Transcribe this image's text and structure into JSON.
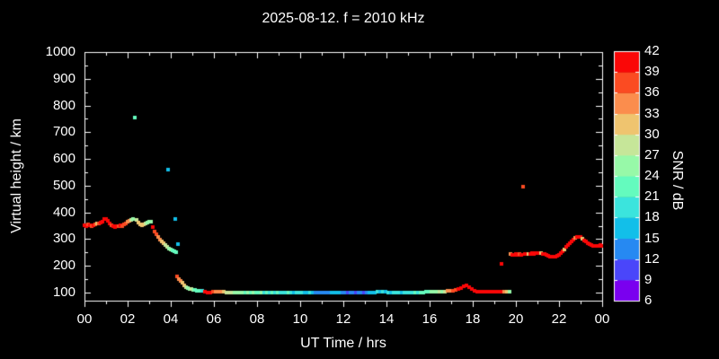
{
  "title": "2025-08-12. f = 2010 kHz",
  "chart_data": {
    "type": "scatter",
    "title": "2025-08-12. f = 2010 kHz",
    "xlabel": "UT Time / hrs",
    "ylabel": "Virtual height / km",
    "xlim": [
      0,
      24
    ],
    "ylim": [
      70,
      1000
    ],
    "grid": "off",
    "background": "#000000",
    "text_color": "#ffffff",
    "x_major_ticks": {
      "hours": [
        0,
        2,
        4,
        6,
        8,
        10,
        12,
        14,
        16,
        18,
        20,
        22,
        24
      ],
      "labels": [
        "00",
        "02",
        "04",
        "06",
        "08",
        "10",
        "12",
        "14",
        "16",
        "18",
        "20",
        "22",
        "00"
      ]
    },
    "x_minor_tick_hours": [
      1,
      3,
      5,
      7,
      9,
      11,
      13,
      15,
      17,
      19,
      21,
      23
    ],
    "y_major_ticks": {
      "values": [
        100,
        200,
        300,
        400,
        500,
        600,
        700,
        800,
        900,
        1000
      ],
      "labels": [
        "100",
        "200",
        "300",
        "400",
        "500",
        "600",
        "700",
        "800",
        "900",
        "1000"
      ]
    },
    "y_minor_tick_values": [
      150,
      250,
      350,
      450,
      550,
      650,
      750,
      850,
      950
    ],
    "colorbar": {
      "label": "SNR / dB",
      "tick_labels_top_to_bottom": [
        "42",
        "39",
        "36",
        "33",
        "30",
        "27",
        "24",
        "21",
        "18",
        "15",
        "12",
        "9",
        "6"
      ],
      "bin_edges": [
        6,
        9,
        12,
        15,
        18,
        21,
        24,
        27,
        30,
        33,
        36,
        39,
        42
      ],
      "colors_low_to_high": [
        "#7A00EF",
        "#4A46FA",
        "#2689F2",
        "#12BFE9",
        "#3BE4DD",
        "#64FBBE",
        "#97F9A8",
        "#C6E699",
        "#EFC46F",
        "#FB8D4D",
        "#FB4B22",
        "#FA0707"
      ]
    },
    "points_format": "[ut_hour, virtual_height_km, snr_db]",
    "points": [
      [
        0.0,
        352,
        39
      ],
      [
        0.08,
        350,
        40
      ],
      [
        0.17,
        355,
        38
      ],
      [
        0.25,
        351,
        40
      ],
      [
        0.33,
        348,
        37
      ],
      [
        0.42,
        352,
        40
      ],
      [
        0.5,
        357,
        36
      ],
      [
        0.58,
        360,
        31
      ],
      [
        0.67,
        358,
        37
      ],
      [
        0.75,
        361,
        40
      ],
      [
        0.83,
        367,
        40
      ],
      [
        0.92,
        374,
        41
      ],
      [
        1.0,
        377,
        40
      ],
      [
        1.08,
        369,
        39
      ],
      [
        1.17,
        360,
        40
      ],
      [
        1.25,
        352,
        38
      ],
      [
        1.33,
        348,
        40
      ],
      [
        1.42,
        345,
        41
      ],
      [
        1.5,
        347,
        39
      ],
      [
        1.58,
        350,
        37
      ],
      [
        1.67,
        352,
        40
      ],
      [
        1.75,
        350,
        38
      ],
      [
        1.83,
        354,
        36
      ],
      [
        1.92,
        359,
        37
      ],
      [
        2.0,
        364,
        34
      ],
      [
        2.08,
        368,
        35
      ],
      [
        2.17,
        371,
        28
      ],
      [
        2.25,
        374,
        26
      ],
      [
        2.33,
        755,
        23
      ],
      [
        2.42,
        371,
        28
      ],
      [
        2.5,
        362,
        31
      ],
      [
        2.58,
        356,
        31
      ],
      [
        2.67,
        352,
        32
      ],
      [
        2.75,
        355,
        30
      ],
      [
        2.83,
        358,
        28
      ],
      [
        2.92,
        362,
        26
      ],
      [
        3.0,
        365,
        25
      ],
      [
        3.08,
        367,
        26
      ],
      [
        3.17,
        345,
        40
      ],
      [
        3.25,
        330,
        37
      ],
      [
        3.33,
        320,
        36
      ],
      [
        3.42,
        310,
        35
      ],
      [
        3.5,
        298,
        33
      ],
      [
        3.58,
        292,
        32
      ],
      [
        3.67,
        285,
        30
      ],
      [
        3.75,
        278,
        28
      ],
      [
        3.83,
        270,
        27
      ],
      [
        3.87,
        560,
        16
      ],
      [
        3.92,
        265,
        25
      ],
      [
        4.0,
        260,
        24
      ],
      [
        4.08,
        257,
        23
      ],
      [
        4.17,
        255,
        23
      ],
      [
        4.2,
        376,
        17
      ],
      [
        4.25,
        252,
        22
      ],
      [
        4.33,
        282,
        16
      ],
      [
        4.3,
        160,
        37
      ],
      [
        4.38,
        152,
        35
      ],
      [
        4.46,
        143,
        34
      ],
      [
        4.54,
        136,
        32
      ],
      [
        4.63,
        128,
        30
      ],
      [
        4.71,
        122,
        28
      ],
      [
        4.79,
        118,
        26
      ],
      [
        4.88,
        115,
        25
      ],
      [
        4.96,
        113,
        27
      ],
      [
        5.04,
        111,
        24
      ],
      [
        5.13,
        109,
        23
      ],
      [
        5.2,
        108,
        21
      ],
      [
        5.33,
        107,
        23
      ],
      [
        5.45,
        106,
        20
      ],
      [
        5.58,
        102,
        39
      ],
      [
        5.7,
        101,
        41
      ],
      [
        5.83,
        101,
        40
      ],
      [
        5.95,
        102,
        38
      ],
      [
        6.08,
        102,
        35
      ],
      [
        6.2,
        102,
        34
      ],
      [
        6.33,
        102,
        33
      ],
      [
        6.45,
        102,
        32
      ],
      [
        6.58,
        101,
        29
      ],
      [
        6.7,
        101,
        28
      ],
      [
        6.83,
        101,
        27
      ],
      [
        6.95,
        100,
        26
      ],
      [
        7.08,
        100,
        25
      ],
      [
        7.2,
        100,
        24
      ],
      [
        7.33,
        100,
        26
      ],
      [
        7.45,
        100,
        23
      ],
      [
        7.58,
        100,
        25
      ],
      [
        7.7,
        100,
        22
      ],
      [
        7.83,
        100,
        24
      ],
      [
        7.95,
        100,
        23
      ],
      [
        8.08,
        100,
        21
      ],
      [
        8.2,
        100,
        24
      ],
      [
        8.33,
        100,
        20
      ],
      [
        8.45,
        100,
        22
      ],
      [
        8.58,
        100,
        19
      ],
      [
        8.7,
        100,
        23
      ],
      [
        8.83,
        100,
        20
      ],
      [
        8.95,
        100,
        21
      ],
      [
        9.08,
        100,
        19
      ],
      [
        9.2,
        100,
        20
      ],
      [
        9.33,
        100,
        18
      ],
      [
        9.45,
        100,
        21
      ],
      [
        9.58,
        100,
        19
      ],
      [
        9.7,
        100,
        17
      ],
      [
        9.83,
        100,
        20
      ],
      [
        9.95,
        100,
        18
      ],
      [
        10.08,
        100,
        19
      ],
      [
        10.2,
        100,
        17
      ],
      [
        10.33,
        100,
        16
      ],
      [
        10.45,
        100,
        18
      ],
      [
        10.58,
        100,
        15
      ],
      [
        10.7,
        100,
        13
      ],
      [
        10.83,
        100,
        14
      ],
      [
        10.95,
        100,
        12
      ],
      [
        11.08,
        100,
        13
      ],
      [
        11.2,
        100,
        14
      ],
      [
        11.33,
        100,
        12
      ],
      [
        11.45,
        100,
        15
      ],
      [
        11.58,
        100,
        16
      ],
      [
        11.7,
        100,
        17
      ],
      [
        11.83,
        100,
        16
      ],
      [
        11.95,
        100,
        14
      ],
      [
        12.08,
        100,
        13
      ],
      [
        12.2,
        100,
        11
      ],
      [
        12.33,
        100,
        12
      ],
      [
        12.45,
        100,
        13
      ],
      [
        12.58,
        100,
        10
      ],
      [
        12.7,
        100,
        12
      ],
      [
        12.83,
        100,
        13
      ],
      [
        12.95,
        100,
        11
      ],
      [
        13.08,
        100,
        14
      ],
      [
        13.2,
        100,
        15
      ],
      [
        13.33,
        100,
        16
      ],
      [
        13.45,
        101,
        17
      ],
      [
        13.58,
        102,
        18
      ],
      [
        13.7,
        102,
        17
      ],
      [
        13.83,
        104,
        19
      ],
      [
        13.95,
        103,
        16
      ],
      [
        14.08,
        101,
        18
      ],
      [
        14.2,
        101,
        17
      ],
      [
        14.33,
        100,
        19
      ],
      [
        14.45,
        100,
        18
      ],
      [
        14.58,
        100,
        20
      ],
      [
        14.7,
        100,
        17
      ],
      [
        14.83,
        100,
        19
      ],
      [
        14.95,
        100,
        18
      ],
      [
        15.08,
        100,
        20
      ],
      [
        15.2,
        100,
        19
      ],
      [
        15.33,
        101,
        21
      ],
      [
        15.45,
        101,
        20
      ],
      [
        15.58,
        101,
        22
      ],
      [
        15.7,
        101,
        21
      ],
      [
        15.83,
        102,
        23
      ],
      [
        15.95,
        102,
        22
      ],
      [
        16.08,
        102,
        24
      ],
      [
        16.2,
        103,
        25
      ],
      [
        16.33,
        103,
        26
      ],
      [
        16.45,
        104,
        27
      ],
      [
        16.58,
        104,
        26
      ],
      [
        16.7,
        105,
        28
      ],
      [
        16.83,
        106,
        33
      ],
      [
        16.95,
        107,
        35
      ],
      [
        17.08,
        108,
        36
      ],
      [
        17.2,
        110,
        38
      ],
      [
        17.33,
        113,
        40
      ],
      [
        17.45,
        117,
        41
      ],
      [
        17.58,
        124,
        42
      ],
      [
        17.7,
        128,
        41
      ],
      [
        17.83,
        122,
        40
      ],
      [
        17.95,
        113,
        39
      ],
      [
        18.08,
        107,
        41
      ],
      [
        18.2,
        105,
        40
      ],
      [
        18.33,
        104,
        39
      ],
      [
        18.45,
        104,
        41
      ],
      [
        18.58,
        103,
        40
      ],
      [
        18.7,
        103,
        42
      ],
      [
        18.83,
        103,
        40
      ],
      [
        18.95,
        104,
        41
      ],
      [
        19.08,
        104,
        40
      ],
      [
        19.2,
        103,
        39
      ],
      [
        19.33,
        103,
        40
      ],
      [
        19.45,
        104,
        35
      ],
      [
        19.58,
        103,
        31
      ],
      [
        19.7,
        104,
        24
      ],
      [
        19.33,
        207,
        40
      ],
      [
        19.75,
        244,
        33
      ],
      [
        19.83,
        242,
        40
      ],
      [
        19.92,
        240,
        39
      ],
      [
        20.0,
        243,
        41
      ],
      [
        20.08,
        241,
        40
      ],
      [
        20.17,
        244,
        38
      ],
      [
        20.25,
        242,
        40
      ],
      [
        20.33,
        496,
        37
      ],
      [
        20.42,
        245,
        40
      ],
      [
        20.5,
        243,
        39
      ],
      [
        20.58,
        246,
        31
      ],
      [
        20.67,
        244,
        40
      ],
      [
        20.75,
        247,
        41
      ],
      [
        20.83,
        245,
        40
      ],
      [
        20.92,
        248,
        39
      ],
      [
        21.0,
        247,
        40
      ],
      [
        21.08,
        249,
        41
      ],
      [
        21.17,
        248,
        32
      ],
      [
        21.25,
        246,
        40
      ],
      [
        21.33,
        243,
        39
      ],
      [
        21.42,
        240,
        40
      ],
      [
        21.5,
        238,
        41
      ],
      [
        21.58,
        236,
        40
      ],
      [
        21.67,
        234,
        39
      ],
      [
        21.75,
        233,
        40
      ],
      [
        21.83,
        235,
        41
      ],
      [
        21.92,
        238,
        40
      ],
      [
        22.0,
        242,
        40
      ],
      [
        22.08,
        248,
        39
      ],
      [
        22.17,
        255,
        40
      ],
      [
        22.25,
        262,
        31
      ],
      [
        22.33,
        270,
        40
      ],
      [
        22.42,
        278,
        41
      ],
      [
        22.5,
        285,
        40
      ],
      [
        22.58,
        292,
        39
      ],
      [
        22.67,
        298,
        40
      ],
      [
        22.75,
        304,
        33
      ],
      [
        22.83,
        308,
        40
      ],
      [
        22.92,
        310,
        41
      ],
      [
        23.0,
        308,
        40
      ],
      [
        23.08,
        303,
        32
      ],
      [
        23.17,
        296,
        40
      ],
      [
        23.25,
        290,
        39
      ],
      [
        23.33,
        284,
        40
      ],
      [
        23.42,
        280,
        41
      ],
      [
        23.5,
        277,
        40
      ],
      [
        23.58,
        275,
        39
      ],
      [
        23.67,
        274,
        40
      ],
      [
        23.75,
        275,
        41
      ],
      [
        23.83,
        276,
        40
      ],
      [
        23.92,
        277,
        39
      ],
      [
        23.97,
        276,
        40
      ]
    ]
  }
}
